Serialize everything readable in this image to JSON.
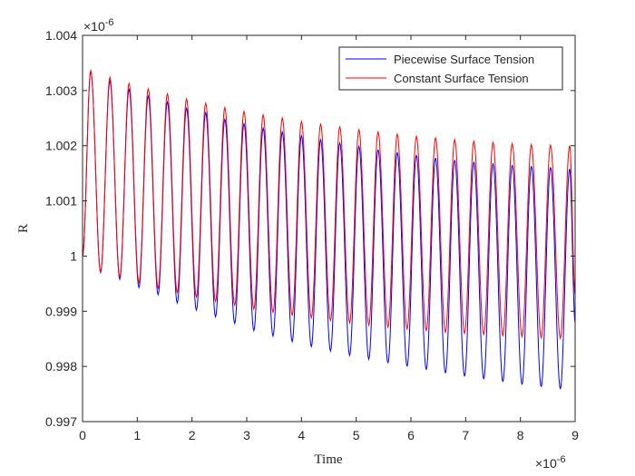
{
  "chart_data": {
    "type": "line",
    "title": "",
    "xlabel": "Time",
    "ylabel": "R",
    "x_multiplier": "×10",
    "x_exponent": "-6",
    "y_multiplier": "×10",
    "y_exponent": "-6",
    "xlim": [
      0,
      9
    ],
    "ylim": [
      0.997,
      1.004
    ],
    "x_ticks": [
      "0",
      "1",
      "2",
      "3",
      "4",
      "5",
      "6",
      "7",
      "8",
      "9"
    ],
    "y_ticks": [
      "0.997",
      "0.998",
      "0.999",
      "1",
      "1.001",
      "1.002",
      "1.003",
      "1.004"
    ],
    "grid": false,
    "legend_position": "top-right",
    "oscillation_period": 0.349,
    "series": [
      {
        "name": "Piecewise Surface Tension",
        "color": "#0000ff",
        "peaks": {
          "x": [
            0.15,
            0.5,
            0.85,
            1.2,
            1.55,
            1.9,
            2.25,
            2.6,
            2.95,
            3.3,
            3.65,
            4.0,
            4.35,
            4.7,
            5.05,
            5.4,
            5.75,
            6.1,
            6.45,
            6.8,
            7.15,
            7.5,
            7.85,
            8.2,
            8.55,
            8.9
          ],
          "y": [
            1.00335,
            1.00317,
            1.00302,
            1.0029,
            1.00279,
            1.00268,
            1.0026,
            1.00248,
            1.0024,
            1.00232,
            1.00225,
            1.00218,
            1.00211,
            1.00205,
            1.00199,
            1.00193,
            1.00188,
            1.00183,
            1.00178,
            1.00174,
            1.00171,
            1.00168,
            1.00165,
            1.00163,
            1.00161,
            1.00158
          ]
        },
        "troughs": {
          "x": [
            0.33,
            0.68,
            1.03,
            1.38,
            1.73,
            2.08,
            2.43,
            2.78,
            3.13,
            3.48,
            3.83,
            4.18,
            4.53,
            4.88,
            5.23,
            5.58,
            5.93,
            6.28,
            6.63,
            6.98,
            7.33,
            7.68,
            8.03,
            8.38,
            8.73
          ],
          "y": [
            0.9997,
            0.99958,
            0.99943,
            0.9993,
            0.99915,
            0.99902,
            0.9989,
            0.99878,
            0.99865,
            0.99855,
            0.99845,
            0.99836,
            0.99828,
            0.9982,
            0.99813,
            0.99806,
            0.998,
            0.99794,
            0.99788,
            0.99782,
            0.99777,
            0.99772,
            0.99767,
            0.99763,
            0.99759
          ]
        },
        "end_value": 0.9988
      },
      {
        "name": "Constant Surface Tension",
        "color": "#ff0000",
        "peaks": {
          "x": [
            0.15,
            0.5,
            0.85,
            1.2,
            1.55,
            1.9,
            2.25,
            2.6,
            2.95,
            3.3,
            3.65,
            4.0,
            4.35,
            4.7,
            5.05,
            5.4,
            5.75,
            6.1,
            6.45,
            6.8,
            7.15,
            7.5,
            7.85,
            8.2,
            8.55,
            8.9
          ],
          "y": [
            1.00336,
            1.00324,
            1.00313,
            1.00303,
            1.00294,
            1.00285,
            1.00277,
            1.00269,
            1.00262,
            1.00256,
            1.0025,
            1.00244,
            1.00239,
            1.00234,
            1.00229,
            1.00225,
            1.00221,
            1.00217,
            1.00214,
            1.00211,
            1.00208,
            1.00206,
            1.00204,
            1.00202,
            1.00201,
            1.002
          ]
        },
        "troughs": {
          "x": [
            0.33,
            0.68,
            1.03,
            1.38,
            1.73,
            2.08,
            2.43,
            2.78,
            3.13,
            3.48,
            3.83,
            4.18,
            4.53,
            4.88,
            5.23,
            5.58,
            5.93,
            6.28,
            6.63,
            6.98,
            7.33,
            7.68,
            8.03,
            8.38,
            8.73
          ],
          "y": [
            0.99972,
            0.99962,
            0.99952,
            0.99942,
            0.99934,
            0.99926,
            0.99918,
            0.99911,
            0.99904,
            0.99898,
            0.99893,
            0.99888,
            0.99883,
            0.99879,
            0.99875,
            0.99871,
            0.99868,
            0.99865,
            0.99862,
            0.9986,
            0.99858,
            0.99856,
            0.99854,
            0.99852,
            0.99851
          ]
        },
        "end_value": 0.9993
      }
    ]
  }
}
